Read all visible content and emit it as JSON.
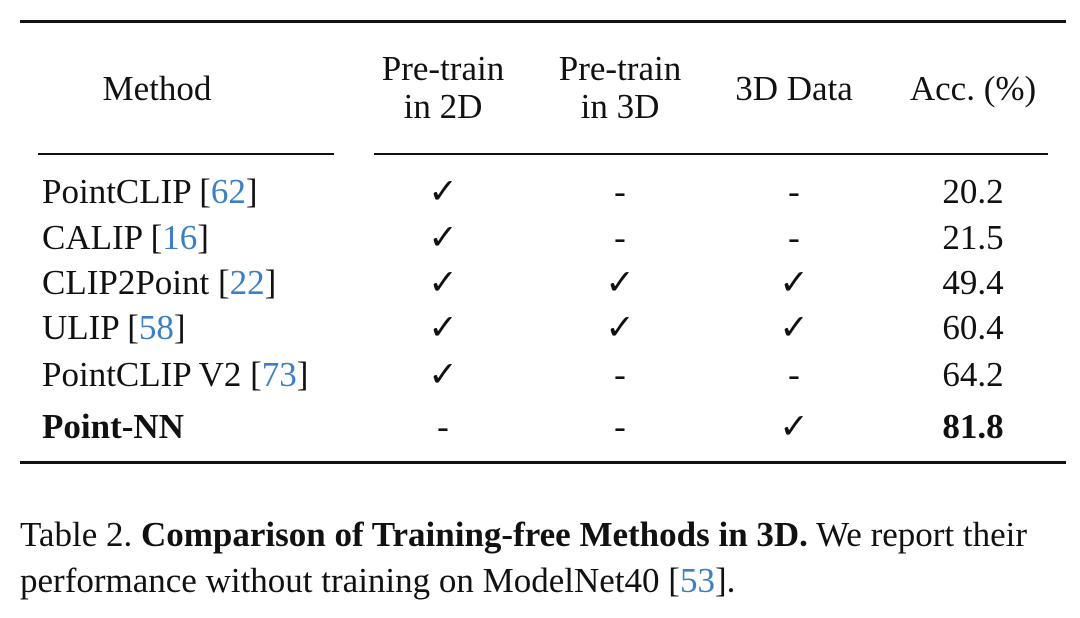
{
  "table": {
    "headers": {
      "method": "Method",
      "pretrain2d": [
        "Pre-train",
        "in 2D"
      ],
      "pretrain3d": [
        "Pre-train",
        "in 3D"
      ],
      "data3d": "3D Data",
      "acc": "Acc. (%)"
    },
    "rows": [
      {
        "method": "PointCLIP",
        "cite": "62",
        "p2d": "✓",
        "p3d": "-",
        "d3d": "-",
        "acc": "20.2",
        "bold": false
      },
      {
        "method": "CALIP",
        "cite": "16",
        "p2d": "✓",
        "p3d": "-",
        "d3d": "-",
        "acc": "21.5",
        "bold": false
      },
      {
        "method": "CLIP2Point",
        "cite": "22",
        "p2d": "✓",
        "p3d": "✓",
        "d3d": "✓",
        "acc": "49.4",
        "bold": false
      },
      {
        "method": "ULIP",
        "cite": "58",
        "p2d": "✓",
        "p3d": "✓",
        "d3d": "✓",
        "acc": "60.4",
        "bold": false
      },
      {
        "method": "PointCLIP V2",
        "cite": "73",
        "p2d": "✓",
        "p3d": "-",
        "d3d": "-",
        "acc": "64.2",
        "bold": false
      },
      {
        "method": "Point-NN",
        "cite": "",
        "p2d": "-",
        "p3d": "-",
        "d3d": "✓",
        "acc": "81.8",
        "bold": true
      }
    ]
  },
  "caption": {
    "label": "Table 2.",
    "title": "Comparison of Training-free Methods in 3D.",
    "text_before": "We report their performance without training on ModelNet40 [",
    "cite": "53",
    "text_after": "]."
  }
}
